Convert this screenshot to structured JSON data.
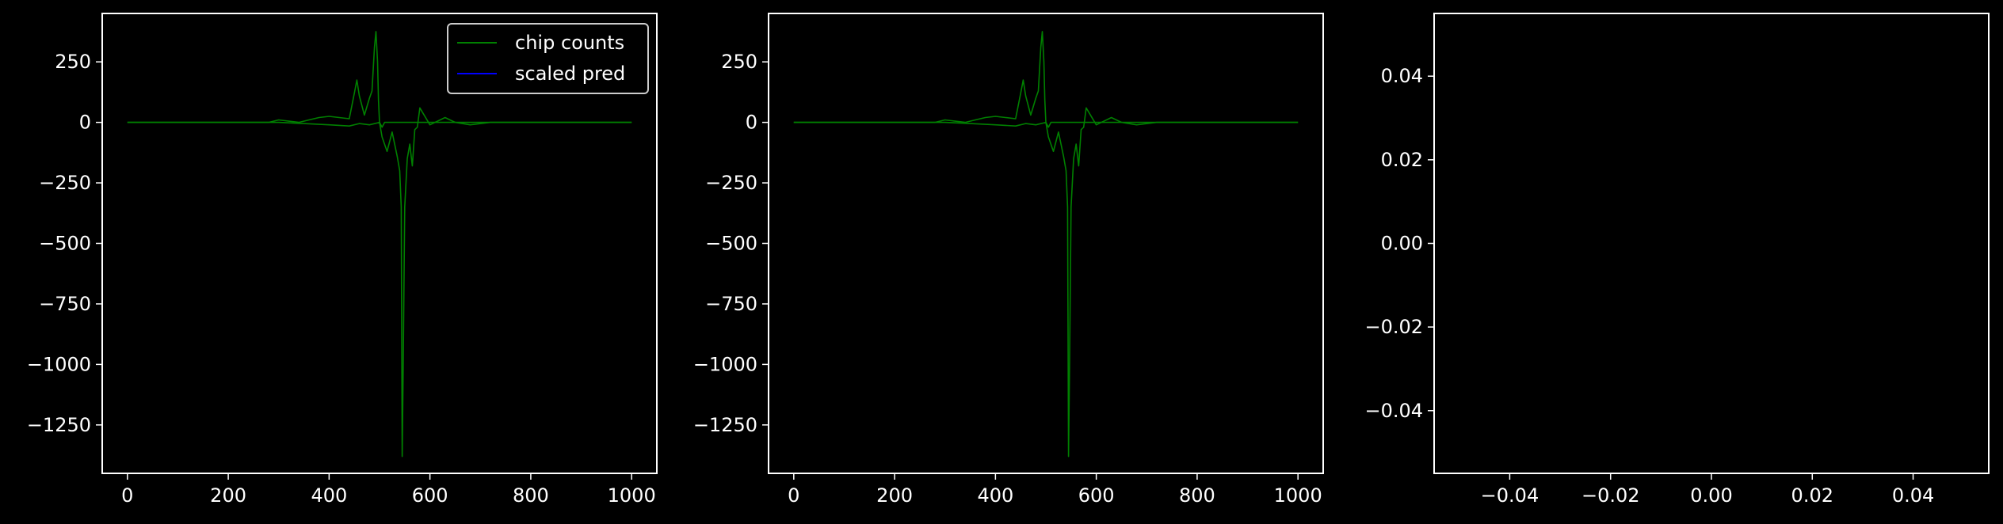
{
  "figure": {
    "background": "#000000",
    "foreground": "#ffffff"
  },
  "chart_data": [
    {
      "type": "line",
      "title": "",
      "xlabel": "",
      "ylabel": "",
      "xlim": [
        -50,
        1050
      ],
      "ylim": [
        -1450,
        450
      ],
      "xticks": [
        0,
        200,
        400,
        600,
        800,
        1000
      ],
      "xtick_labels": [
        "0",
        "200",
        "400",
        "600",
        "800",
        "1000"
      ],
      "yticks": [
        250,
        0,
        -250,
        -500,
        -750,
        -1000,
        -1250
      ],
      "ytick_labels": [
        "250",
        "0",
        "−250",
        "−500",
        "−750",
        "−1000",
        "−1250"
      ],
      "grid": false,
      "legend": {
        "placement": "top-right",
        "entries": [
          "chip counts",
          "scaled pred"
        ]
      },
      "series": [
        {
          "name": "chip counts",
          "color": "#008000",
          "x": [
            0,
            100,
            200,
            280,
            300,
            320,
            340,
            360,
            380,
            400,
            420,
            440,
            450,
            455,
            460,
            470,
            480,
            485,
            490,
            493,
            496,
            498,
            500,
            505,
            515,
            525,
            535,
            540,
            543,
            545,
            547,
            550,
            555,
            560,
            565,
            570,
            575,
            580,
            600,
            630,
            650,
            680,
            720,
            760,
            1000
          ],
          "values": [
            0,
            0,
            0,
            0,
            10,
            5,
            0,
            10,
            20,
            25,
            20,
            15,
            120,
            175,
            110,
            30,
            100,
            130,
            310,
            375,
            250,
            90,
            0,
            -60,
            -120,
            -40,
            -140,
            -200,
            -350,
            -1380,
            -1000,
            -350,
            -150,
            -90,
            -180,
            -30,
            -20,
            60,
            -10,
            20,
            0,
            -10,
            0,
            0,
            0
          ]
        },
        {
          "name": "",
          "color": "#008000",
          "x": [
            0,
            300,
            350,
            400,
            440,
            460,
            480,
            500,
            505,
            510,
            1000
          ],
          "values": [
            0,
            0,
            -5,
            -10,
            -15,
            -5,
            -10,
            0,
            -20,
            0,
            0
          ]
        },
        {
          "name": "scaled pred",
          "color": "#0000ff",
          "x": [],
          "values": []
        }
      ]
    },
    {
      "type": "line",
      "title": "",
      "xlabel": "",
      "ylabel": "",
      "xlim": [
        -50,
        1050
      ],
      "ylim": [
        -1450,
        450
      ],
      "xticks": [
        0,
        200,
        400,
        600,
        800,
        1000
      ],
      "xtick_labels": [
        "0",
        "200",
        "400",
        "600",
        "800",
        "1000"
      ],
      "yticks": [
        250,
        0,
        -250,
        -500,
        -750,
        -1000,
        -1250
      ],
      "ytick_labels": [
        "250",
        "0",
        "−250",
        "−500",
        "−750",
        "−1000",
        "−1250"
      ],
      "grid": false,
      "series": [
        {
          "name": "",
          "color": "#008000",
          "x": [
            0,
            100,
            200,
            280,
            300,
            320,
            340,
            360,
            380,
            400,
            420,
            440,
            450,
            455,
            460,
            470,
            480,
            485,
            490,
            493,
            496,
            498,
            500,
            505,
            515,
            525,
            535,
            540,
            543,
            545,
            547,
            550,
            555,
            560,
            565,
            570,
            575,
            580,
            600,
            630,
            650,
            680,
            720,
            760,
            1000
          ],
          "values": [
            0,
            0,
            0,
            0,
            10,
            5,
            0,
            10,
            20,
            25,
            20,
            15,
            120,
            175,
            110,
            30,
            100,
            130,
            310,
            375,
            250,
            90,
            0,
            -60,
            -120,
            -40,
            -140,
            -200,
            -350,
            -1380,
            -1000,
            -350,
            -150,
            -90,
            -180,
            -30,
            -20,
            60,
            -10,
            20,
            0,
            -10,
            0,
            0,
            0
          ]
        },
        {
          "name": "",
          "color": "#008000",
          "x": [
            0,
            300,
            350,
            400,
            440,
            460,
            480,
            500,
            505,
            510,
            1000
          ],
          "values": [
            0,
            0,
            -5,
            -10,
            -15,
            -5,
            -10,
            0,
            -20,
            0,
            0
          ]
        }
      ]
    },
    {
      "type": "line",
      "title": "",
      "xlabel": "",
      "ylabel": "",
      "xlim": [
        -0.055,
        0.055
      ],
      "ylim": [
        -0.055,
        0.055
      ],
      "xticks": [
        -0.04,
        -0.02,
        0.0,
        0.02,
        0.04
      ],
      "xtick_labels": [
        "−0.04",
        "−0.02",
        "0.00",
        "0.02",
        "0.04"
      ],
      "yticks": [
        0.04,
        0.02,
        0.0,
        -0.02,
        -0.04
      ],
      "ytick_labels": [
        "0.04",
        "0.02",
        "0.00",
        "−0.02",
        "−0.04"
      ],
      "grid": false,
      "series": []
    }
  ]
}
